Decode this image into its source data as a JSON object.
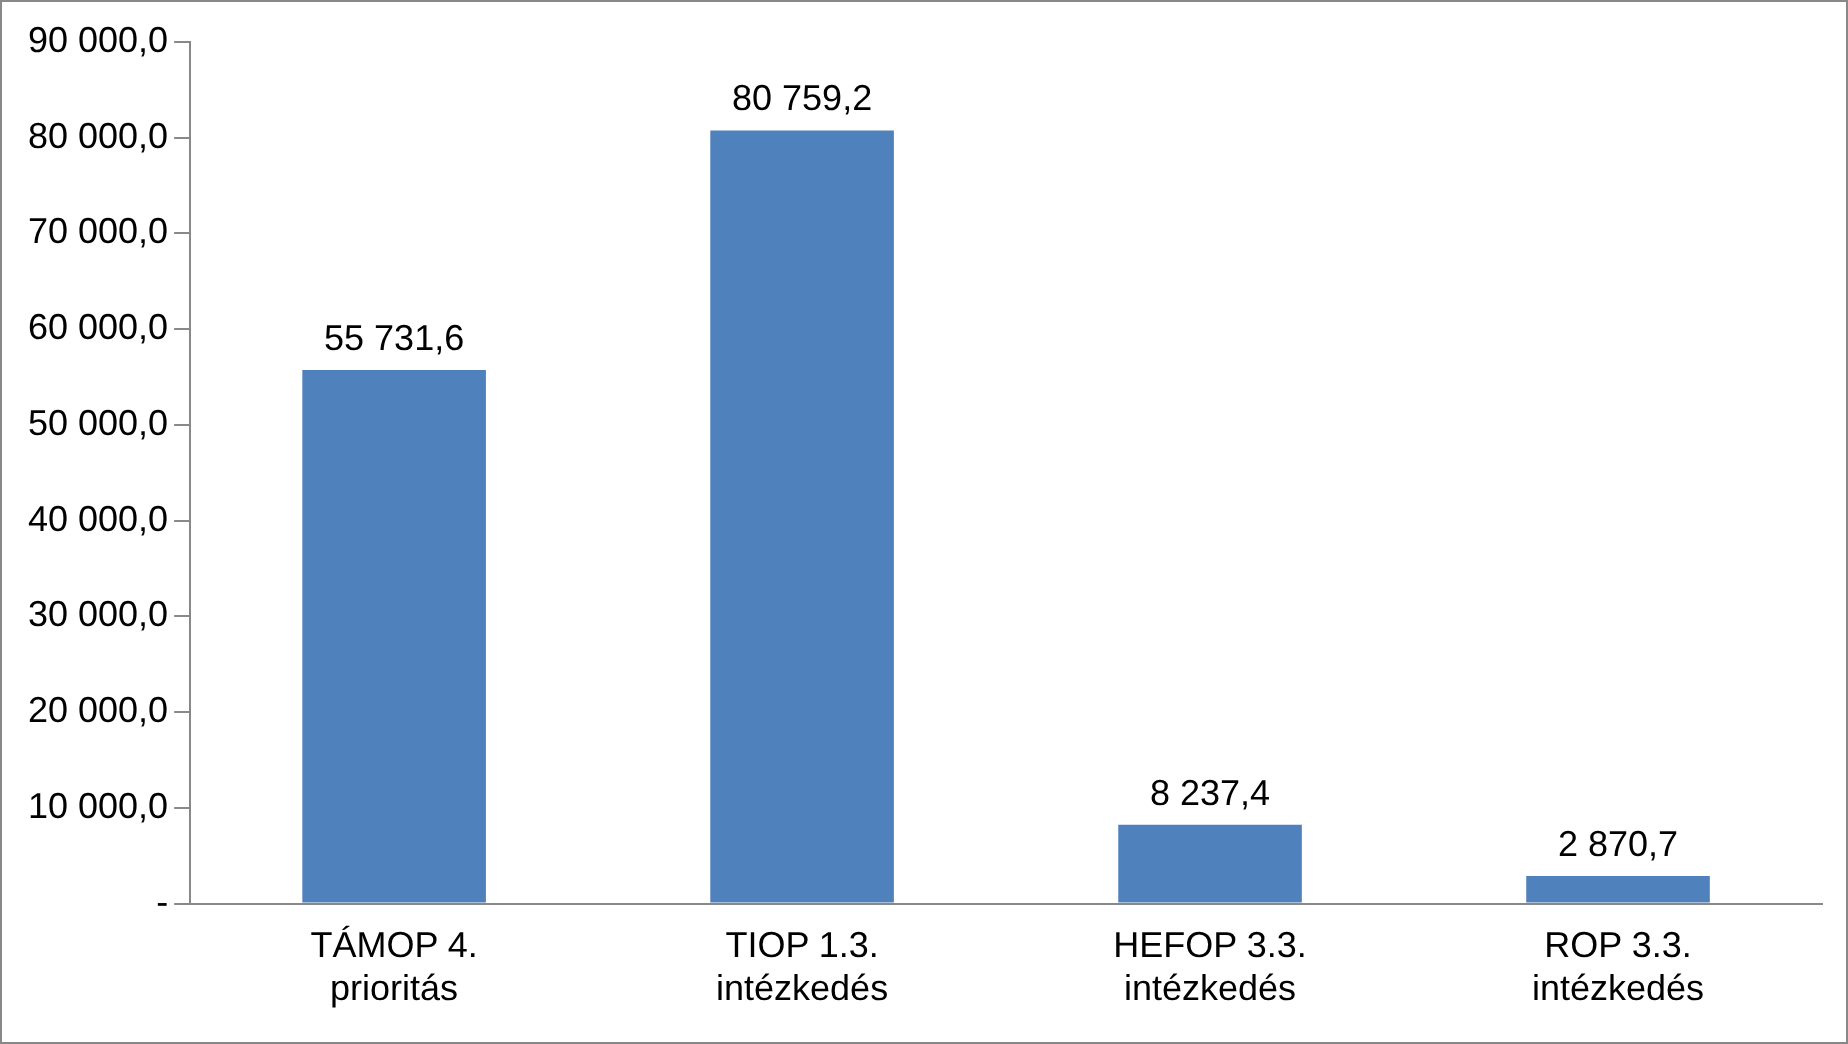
{
  "chart_data": {
    "type": "bar",
    "categories": [
      "TÁMOP 4. prioritás",
      "TIOP 1.3. intézkedés",
      "HEFOP 3.3. intézkedés",
      "ROP 3.3. intézkedés"
    ],
    "values": [
      55731.6,
      80759.2,
      8237.4,
      2870.7
    ],
    "value_labels": [
      "55 731,6",
      "80 759,2",
      "8 237,4",
      "2 870,7"
    ],
    "color": "#4f81bd",
    "ylim": [
      0,
      90000
    ],
    "yticks": [
      {
        "value": 0,
        "label": "-"
      },
      {
        "value": 10000,
        "label": "10 000,0"
      },
      {
        "value": 20000,
        "label": "20 000,0"
      },
      {
        "value": 30000,
        "label": "30 000,0"
      },
      {
        "value": 40000,
        "label": "40 000,0"
      },
      {
        "value": 50000,
        "label": "50 000,0"
      },
      {
        "value": 60000,
        "label": "60 000,0"
      },
      {
        "value": 70000,
        "label": "70 000,0"
      },
      {
        "value": 80000,
        "label": "80 000,0"
      },
      {
        "value": 90000,
        "label": "90 000,0"
      }
    ],
    "grid": false,
    "legend": false
  }
}
